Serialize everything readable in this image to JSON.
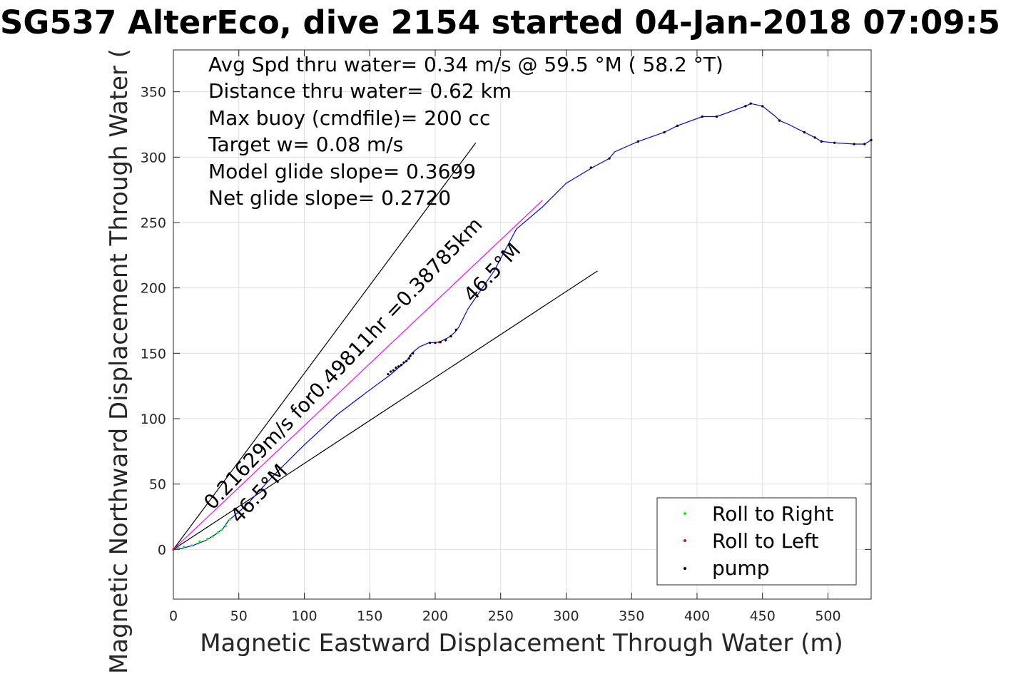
{
  "chart_data": {
    "type": "line",
    "title": "SG537 AlterEco, dive 2154 started 04-Jan-2018 07:09:5",
    "xlabel": "Magnetic Eastward Displacement Through Water (m)",
    "ylabel": "Magnetic Northward Displacement Through Water (",
    "xlim": [
      0,
      533
    ],
    "ylim": [
      -38,
      382
    ],
    "xticks": [
      0,
      50,
      100,
      150,
      200,
      250,
      300,
      350,
      400,
      450,
      500
    ],
    "yticks": [
      0,
      50,
      100,
      150,
      200,
      250,
      300,
      350
    ],
    "grid": true,
    "legend_position": "bottom-right",
    "stats": [
      "Avg Spd thru water=  0.34 m/s @  59.5 °M ( 58.2 °T)",
      "Distance thru water=  0.62 km",
      "Max buoy (cmdfile)= 200 cc",
      "Target w= 0.08 m/s",
      "Model glide slope= 0.3699",
      "Net glide slope= 0.2720"
    ],
    "annotations": [
      "0.21629m/s for0.49811hr =0.38785km",
      "46.5°M",
      "46.5°M"
    ],
    "track": {
      "name": "track",
      "color": "#0000ff",
      "points": [
        [
          0,
          0
        ],
        [
          5,
          0.5
        ],
        [
          15,
          3
        ],
        [
          25,
          7
        ],
        [
          33,
          12
        ],
        [
          38,
          16
        ],
        [
          42,
          22
        ],
        [
          55,
          33
        ],
        [
          75,
          55
        ],
        [
          100,
          80
        ],
        [
          125,
          103
        ],
        [
          150,
          122
        ],
        [
          165,
          133
        ],
        [
          172,
          139
        ],
        [
          178,
          144
        ],
        [
          182,
          150
        ],
        [
          188,
          155
        ],
        [
          195,
          158
        ],
        [
          203,
          158.5
        ],
        [
          210,
          162
        ],
        [
          215,
          166
        ],
        [
          218,
          170
        ],
        [
          225,
          184
        ],
        [
          245,
          213
        ],
        [
          262,
          245
        ],
        [
          282,
          262
        ],
        [
          300,
          280
        ],
        [
          320,
          292
        ],
        [
          333,
          299
        ],
        [
          337,
          304
        ],
        [
          355,
          312
        ],
        [
          375,
          319
        ],
        [
          385,
          324
        ],
        [
          404,
          331
        ],
        [
          415,
          331
        ],
        [
          437,
          339
        ],
        [
          441,
          341
        ],
        [
          450,
          339
        ],
        [
          460,
          331
        ],
        [
          463,
          328
        ],
        [
          470,
          325
        ],
        [
          482,
          319
        ],
        [
          490,
          315
        ],
        [
          495,
          312
        ],
        [
          505,
          311
        ],
        [
          520,
          310
        ],
        [
          528,
          310
        ],
        [
          533,
          313
        ]
      ]
    },
    "series": [
      {
        "name": "Roll to Right",
        "color": "#00ff00",
        "points": [
          [
            4,
            1
          ],
          [
            8,
            2
          ],
          [
            14,
            3
          ],
          [
            20,
            6
          ],
          [
            26,
            8
          ],
          [
            30,
            10
          ],
          [
            34,
            13
          ],
          [
            37,
            15
          ],
          [
            40,
            18
          ],
          [
            43,
            23
          ]
        ]
      },
      {
        "name": "Roll to Left",
        "color": "#ff0000",
        "points": [
          [
            0,
            0
          ],
          [
            196,
            158
          ],
          [
            203,
            158.5
          ],
          [
            208,
            160
          ],
          [
            212,
            163
          ],
          [
            216,
            168
          ],
          [
            319,
            292
          ],
          [
            355,
            312
          ],
          [
            375,
            319
          ],
          [
            385,
            324
          ],
          [
            404,
            331
          ],
          [
            415,
            331
          ],
          [
            437,
            339
          ],
          [
            441,
            341
          ],
          [
            450,
            339
          ],
          [
            463,
            328
          ],
          [
            482,
            319
          ],
          [
            490,
            315
          ],
          [
            495,
            312
          ],
          [
            505,
            311
          ],
          [
            520,
            310
          ],
          [
            528,
            310
          ],
          [
            533,
            313
          ]
        ]
      },
      {
        "name": "pump",
        "color": "#000000",
        "points": [
          [
            164,
            134
          ],
          [
            166,
            136
          ],
          [
            168,
            137
          ],
          [
            170,
            139
          ],
          [
            172,
            140
          ],
          [
            174,
            141
          ],
          [
            176,
            143
          ],
          [
            178,
            144
          ],
          [
            180,
            146
          ],
          [
            181,
            148
          ],
          [
            183,
            150
          ],
          [
            196,
            158
          ],
          [
            200,
            158
          ],
          [
            204,
            158.5
          ],
          [
            208,
            160
          ],
          [
            212,
            163
          ],
          [
            216,
            168
          ],
          [
            319,
            292
          ],
          [
            333,
            299
          ],
          [
            355,
            312
          ],
          [
            375,
            319
          ],
          [
            385,
            324
          ],
          [
            404,
            331
          ],
          [
            415,
            331
          ],
          [
            437,
            339
          ],
          [
            441,
            341
          ],
          [
            450,
            339
          ],
          [
            463,
            328
          ],
          [
            482,
            319
          ],
          [
            490,
            315
          ],
          [
            495,
            312
          ],
          [
            505,
            311
          ],
          [
            520,
            310
          ],
          [
            528,
            310
          ],
          [
            533,
            313
          ]
        ]
      }
    ],
    "reference_lines": [
      {
        "color": "#000000",
        "from": [
          0,
          0
        ],
        "to": [
          231,
          311
        ]
      },
      {
        "color": "#000000",
        "from": [
          0,
          0
        ],
        "to": [
          324,
          213
        ]
      },
      {
        "color": "#ff00ff",
        "from": [
          0,
          0
        ],
        "to": [
          282,
          267
        ]
      }
    ]
  }
}
